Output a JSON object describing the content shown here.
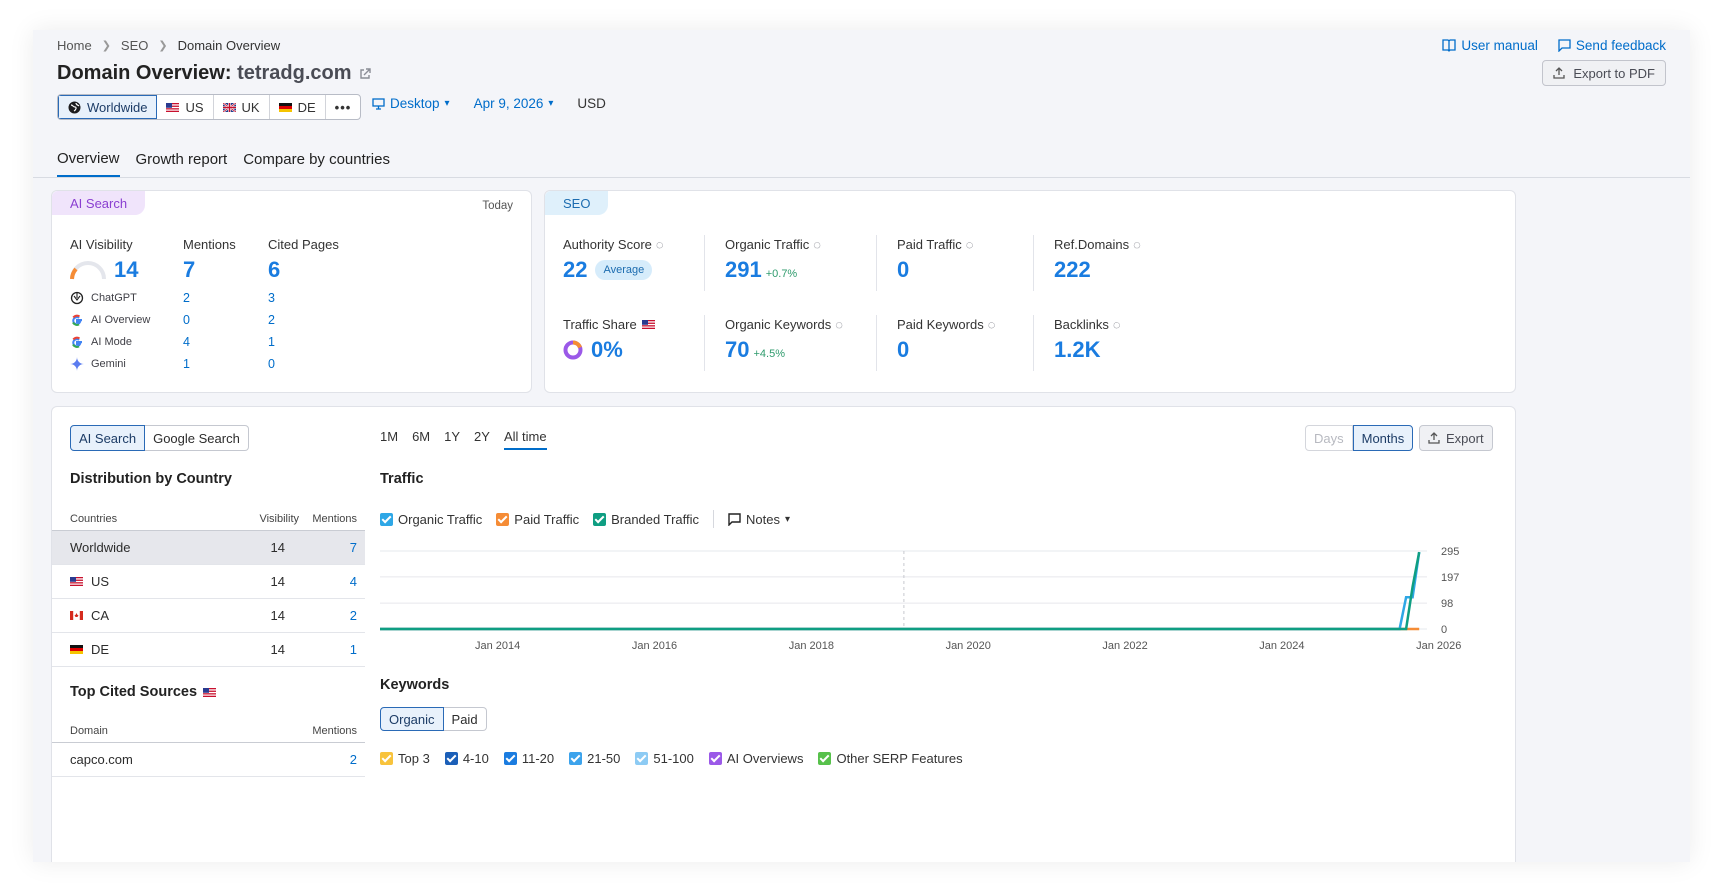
{
  "breadcrumbs": [
    "Home",
    "SEO",
    "Domain Overview"
  ],
  "title": {
    "prefix": "Domain Overview:",
    "domain": "tetradg.com"
  },
  "header_links": {
    "manual": "User manual",
    "feedback": "Send feedback",
    "export_pdf": "Export to PDF"
  },
  "databases": [
    {
      "label": "Worldwide",
      "active": true
    },
    {
      "label": "US"
    },
    {
      "label": "UK"
    },
    {
      "label": "DE"
    },
    {
      "label": "•••"
    }
  ],
  "options": {
    "device": "Desktop",
    "date": "Apr 9, 2026",
    "currency": "USD"
  },
  "tabs": [
    "Overview",
    "Growth report",
    "Compare by countries"
  ],
  "ai_card": {
    "tag": "AI Search",
    "when": "Today",
    "headers": [
      "AI Visibility",
      "Mentions",
      "Cited Pages"
    ],
    "visibility": "14",
    "mentions": "7",
    "cited_pages": "6",
    "rows": [
      {
        "name": "ChatGPT",
        "mentions": "2",
        "cited": "3"
      },
      {
        "name": "AI Overview",
        "mentions": "0",
        "cited": "2"
      },
      {
        "name": "AI Mode",
        "mentions": "4",
        "cited": "1"
      },
      {
        "name": "Gemini",
        "mentions": "1",
        "cited": "0"
      }
    ]
  },
  "seo_card": {
    "tag": "SEO",
    "authority_label": "Authority Score",
    "authority_value": "22",
    "authority_badge": "Average",
    "organic_traffic_label": "Organic Traffic",
    "organic_traffic_value": "291",
    "organic_traffic_delta": "+0.7%",
    "paid_traffic_label": "Paid Traffic",
    "paid_traffic_value": "0",
    "ref_domains_label": "Ref.Domains",
    "ref_domains_value": "222",
    "traffic_share_label": "Traffic Share",
    "traffic_share_value": "0%",
    "organic_kw_label": "Organic Keywords",
    "organic_kw_value": "70",
    "organic_kw_delta": "+4.5%",
    "paid_kw_label": "Paid Keywords",
    "paid_kw_value": "0",
    "backlinks_label": "Backlinks",
    "backlinks_value": "1.2K"
  },
  "left_panel": {
    "toggle": [
      "AI Search",
      "Google Search"
    ],
    "dist_title": "Distribution by Country",
    "dist_headers": [
      "Countries",
      "Visibility",
      "Mentions"
    ],
    "dist_rows": [
      {
        "country": "Worldwide",
        "visibility": "14",
        "mentions": "7"
      },
      {
        "country": "US",
        "visibility": "14",
        "mentions": "4"
      },
      {
        "country": "CA",
        "visibility": "14",
        "mentions": "2"
      },
      {
        "country": "DE",
        "visibility": "14",
        "mentions": "1"
      }
    ],
    "sources_title": "Top Cited Sources",
    "sources_headers": [
      "Domain",
      "Mentions"
    ],
    "sources_rows": [
      {
        "domain": "capco.com",
        "mentions": "2"
      }
    ]
  },
  "periods": [
    "1M",
    "6M",
    "1Y",
    "2Y",
    "All time"
  ],
  "granularity": [
    "Days",
    "Months"
  ],
  "export_label": "Export",
  "traffic": {
    "title": "Traffic",
    "legend": [
      {
        "label": "Organic Traffic",
        "color": "#2ea7e6"
      },
      {
        "label": "Paid Traffic",
        "color": "#f58c36"
      },
      {
        "label": "Branded Traffic",
        "color": "#0f9e82"
      }
    ],
    "notes_label": "Notes"
  },
  "chart_data": {
    "type": "line",
    "x_ticks": [
      "Jan 2014",
      "Jan 2016",
      "Jan 2018",
      "Jan 2020",
      "Jan 2022",
      "Jan 2024",
      "Jan 2026"
    ],
    "y_ticks": [
      "295",
      "197",
      "98",
      "0"
    ],
    "ylim": [
      0,
      295
    ],
    "series": [
      {
        "name": "Organic Traffic",
        "color": "#2ea7e6",
        "points": [
          [
            "2012-07",
            0
          ],
          [
            "2025-07",
            0
          ],
          [
            "2025-08",
            120
          ],
          [
            "2025-09",
            120
          ],
          [
            "2025-10",
            291
          ]
        ]
      },
      {
        "name": "Paid Traffic",
        "color": "#f58c36",
        "points": [
          [
            "2012-07",
            0
          ],
          [
            "2025-10",
            0
          ]
        ]
      },
      {
        "name": "Branded Traffic",
        "color": "#0f9e82",
        "points": [
          [
            "2012-07",
            0
          ],
          [
            "2025-08",
            0
          ],
          [
            "2025-09",
            160
          ],
          [
            "2025-10",
            291
          ]
        ]
      }
    ]
  },
  "keywords": {
    "title": "Keywords",
    "toggle": [
      "Organic",
      "Paid"
    ],
    "legend": [
      {
        "label": "Top 3",
        "color": "#f8c33c"
      },
      {
        "label": "4-10",
        "color": "#1b5fb8"
      },
      {
        "label": "11-20",
        "color": "#1a7ce0"
      },
      {
        "label": "21-50",
        "color": "#3ca3ec"
      },
      {
        "label": "51-100",
        "color": "#8dcbf4"
      },
      {
        "label": "AI Overviews",
        "color": "#9b59e8"
      },
      {
        "label": "Other SERP Features",
        "color": "#57c14b"
      }
    ]
  }
}
